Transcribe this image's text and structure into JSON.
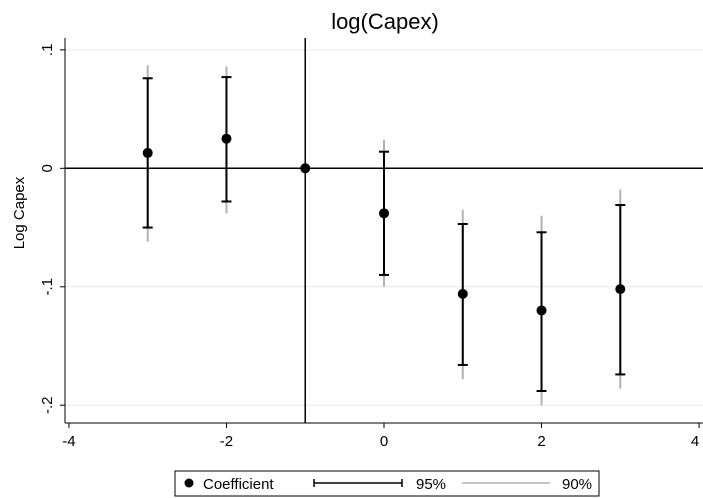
{
  "chart_data": {
    "type": "scatter",
    "title": "log(Capex)",
    "xlabel": "",
    "ylabel": "Log Capex",
    "xlim": [
      -4.05,
      4.05
    ],
    "ylim": [
      -0.215,
      0.11
    ],
    "xticks": [
      -4,
      -2,
      0,
      2,
      4
    ],
    "xtick_labels": [
      "-4",
      "-2",
      "0",
      "2",
      "4"
    ],
    "yticks": [
      0.1,
      0,
      -0.1,
      -0.2
    ],
    "ytick_labels": [
      ".1",
      "0",
      "-.1",
      "-.2"
    ],
    "grid": true,
    "reference_lines": {
      "y": 0,
      "x": -1
    },
    "legend_position": "bottom",
    "series": [
      {
        "name": "Coefficient",
        "kind": "point",
        "x": [
          -3,
          -2,
          -1,
          0,
          1,
          2,
          3
        ],
        "y": [
          0.013,
          0.025,
          0.0,
          -0.038,
          -0.106,
          -0.12,
          -0.102
        ]
      },
      {
        "name": "95%",
        "kind": "capped-interval",
        "x": [
          -3,
          -2,
          -1,
          0,
          1,
          2,
          3
        ],
        "low": [
          -0.05,
          -0.028,
          0.0,
          -0.09,
          -0.166,
          -0.188,
          -0.174
        ],
        "high": [
          0.076,
          0.077,
          0.0,
          0.014,
          -0.047,
          -0.054,
          -0.031
        ]
      },
      {
        "name": "90%",
        "kind": "interval",
        "x": [
          -3,
          -2,
          -1,
          0,
          1,
          2,
          3
        ],
        "low": [
          -0.062,
          -0.038,
          0.0,
          -0.1,
          -0.178,
          -0.2,
          -0.186
        ],
        "high": [
          0.087,
          0.086,
          0.0,
          0.024,
          -0.035,
          -0.04,
          -0.018
        ]
      }
    ],
    "colors": {
      "coefficient": "#000000",
      "ci95": "#000000",
      "ci90": "#b3b3b3",
      "grid": "#e8e8e8"
    }
  }
}
